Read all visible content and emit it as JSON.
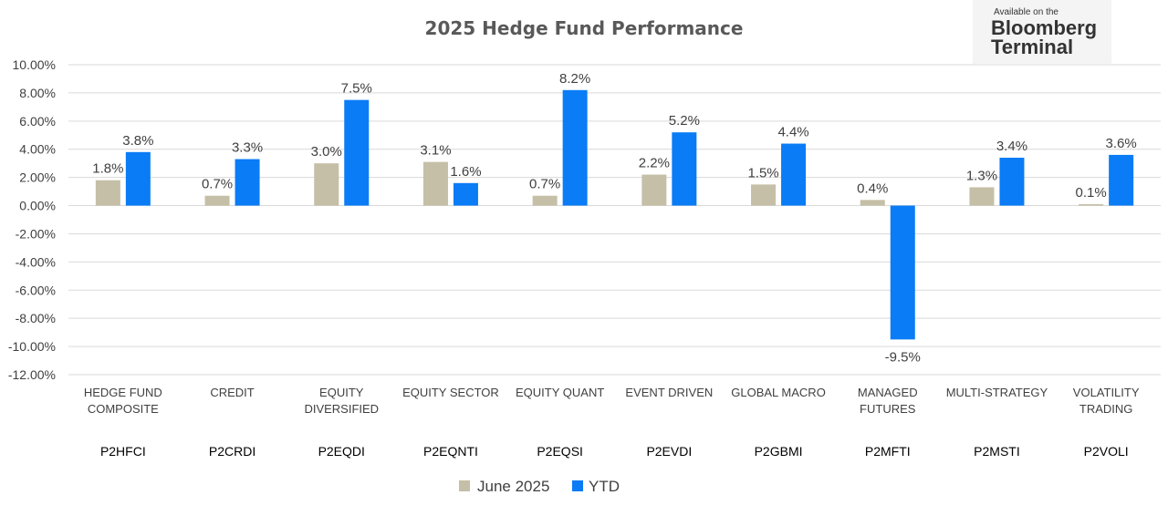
{
  "chart_data": {
    "type": "bar",
    "title": "2025 Hedge Fund Performance",
    "categories": [
      [
        "HEDGE FUND",
        "COMPOSITE"
      ],
      [
        "CREDIT"
      ],
      [
        "EQUITY",
        "DIVERSIFIED"
      ],
      [
        "EQUITY SECTOR"
      ],
      [
        "EQUITY QUANT"
      ],
      [
        "EVENT DRIVEN"
      ],
      [
        "GLOBAL MACRO"
      ],
      [
        "MANAGED",
        "FUTURES"
      ],
      [
        "MULTI-STRATEGY"
      ],
      [
        "VOLATILITY",
        "TRADING"
      ]
    ],
    "codes": [
      "P2HFCI",
      "P2CRDI",
      "P2EQDI",
      "P2EQNTI",
      "P2EQSI",
      "P2EVDI",
      "P2GBMI",
      "P2MFTI",
      "P2MSTI",
      "P2VOLI"
    ],
    "series": [
      {
        "name": "June 2025",
        "color": "#c4bfa6",
        "values": [
          1.8,
          0.7,
          3.0,
          3.1,
          0.7,
          2.2,
          1.5,
          0.4,
          1.3,
          0.1
        ],
        "labels": [
          "1.8%",
          "0.7%",
          "3.0%",
          "3.1%",
          "0.7%",
          "2.2%",
          "1.5%",
          "0.4%",
          "1.3%",
          "0.1%"
        ]
      },
      {
        "name": "YTD",
        "color": "#0a7cf5",
        "values": [
          3.8,
          3.3,
          7.5,
          1.6,
          8.2,
          5.2,
          4.4,
          -9.5,
          3.4,
          3.6
        ],
        "labels": [
          "3.8%",
          "3.3%",
          "7.5%",
          "1.6%",
          "8.2%",
          "5.2%",
          "4.4%",
          "-9.5%",
          "3.4%",
          "3.6%"
        ]
      }
    ],
    "yticks": [
      "10.00%",
      "8.00%",
      "6.00%",
      "4.00%",
      "2.00%",
      "0.00%",
      "-2.00%",
      "-4.00%",
      "-6.00%",
      "-8.00%",
      "-10.00%",
      "-12.00%"
    ],
    "ylim": [
      -12,
      10
    ],
    "grid": true,
    "legend_position": "bottom"
  },
  "logo": {
    "line1": "Available on the",
    "line2": "Bloomberg",
    "line3": "Terminal"
  }
}
